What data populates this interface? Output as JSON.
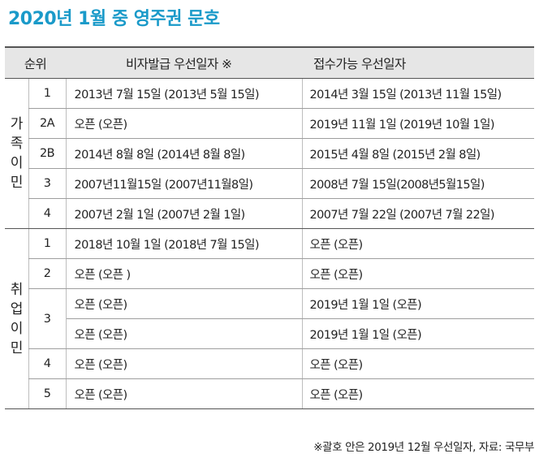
{
  "title": "2020년 1월 중 영주권 문호",
  "header": {
    "rank": "순위",
    "visa_issue": "비자발급 우선일자 ※",
    "filing": "접수가능 우선일자"
  },
  "family": {
    "label_chars": [
      "가",
      "족",
      "이",
      "민"
    ],
    "rows": [
      {
        "rank": "1",
        "visa": "2013년 7월 15일 (2013년 5월 15일)",
        "filing": "2014년 3월 15일 (2013년 11월 15일)"
      },
      {
        "rank": "2A",
        "visa": "오픈 (오픈)",
        "filing": "2019년 11월 1일 (2019년 10월 1일)"
      },
      {
        "rank": "2B",
        "visa": "2014년 8월 8일 (2014년 8월 8일)",
        "filing": "2015년 4월 8일 (2015년 2월 8일)"
      },
      {
        "rank": "3",
        "visa": "2007년11월15일 (2007년11월8일)",
        "filing": "2008년 7월 15일(2008년5월15일)"
      },
      {
        "rank": "4",
        "visa": "2007년 2월 1일 (2007년 2월 1일)",
        "filing": "2007년 7월 22일 (2007년 7월 22일)"
      }
    ]
  },
  "employment": {
    "label_chars": [
      "취",
      "업",
      "이",
      "민"
    ],
    "rows": [
      {
        "rank": "1",
        "visa": "2018년 10월 1일 (2018년 7월 15일)",
        "filing": "오픈 (오픈)"
      },
      {
        "rank": "2",
        "visa": "오픈 (오픈 )",
        "filing": "오픈 (오픈)"
      },
      {
        "rank": "3",
        "visa": "오픈 (오픈)",
        "filing": "2019년 1월 1일  (오픈)"
      },
      {
        "rank": "",
        "visa": "오픈 (오픈)",
        "filing": "2019년 1월 1일  (오픈)"
      },
      {
        "rank": "4",
        "visa": "오픈 (오픈)",
        "filing": "오픈 (오픈)"
      },
      {
        "rank": "5",
        "visa": "오픈 (오픈)",
        "filing": "오픈 (오픈)"
      }
    ]
  },
  "footnote": "※괄호 안은 2019년 12월 우선일자,  자료: 국무부"
}
